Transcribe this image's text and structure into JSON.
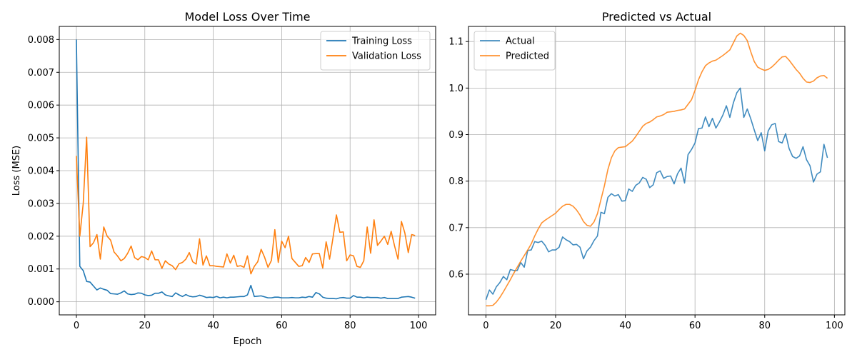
{
  "chart_data": [
    {
      "type": "line",
      "title": "Model Loss Over Time",
      "xlabel": "Epoch",
      "ylabel": "Loss (MSE)",
      "xlim": [
        -5,
        105
      ],
      "ylim": [
        -0.0004,
        0.0084
      ],
      "xticks": [
        0,
        20,
        40,
        60,
        80,
        100
      ],
      "yticks": [
        "0.000",
        "0.001",
        "0.002",
        "0.003",
        "0.004",
        "0.005",
        "0.006",
        "0.007",
        "0.008"
      ],
      "yticks_values": [
        0,
        0.001,
        0.002,
        0.003,
        0.004,
        0.005,
        0.006,
        0.007,
        0.008
      ],
      "grid": true,
      "legend": "top-right",
      "x": [
        0,
        1,
        2,
        3,
        4,
        5,
        6,
        7,
        8,
        9,
        10,
        11,
        12,
        13,
        14,
        15,
        16,
        17,
        18,
        19,
        20,
        21,
        22,
        23,
        24,
        25,
        26,
        27,
        28,
        29,
        30,
        31,
        32,
        33,
        34,
        35,
        36,
        37,
        38,
        39,
        40,
        41,
        42,
        43,
        44,
        45,
        46,
        47,
        48,
        49,
        50,
        51,
        52,
        53,
        54,
        55,
        56,
        57,
        58,
        59,
        60,
        61,
        62,
        63,
        64,
        65,
        66,
        67,
        68,
        69,
        70,
        71,
        72,
        73,
        74,
        75,
        76,
        77,
        78,
        79,
        80,
        81,
        82,
        83,
        84,
        85,
        86,
        87,
        88,
        89,
        90,
        91,
        92,
        93,
        94,
        95,
        96,
        97,
        98,
        99
      ],
      "series": [
        {
          "name": "Training Loss",
          "color": "#1f77b4",
          "values": [
            0.008,
            0.00108,
            0.00095,
            0.00062,
            0.0006,
            0.00048,
            0.00036,
            0.00042,
            0.00038,
            0.00035,
            0.00025,
            0.00024,
            0.00023,
            0.00027,
            0.00033,
            0.00024,
            0.00022,
            0.00023,
            0.00027,
            0.00026,
            0.00021,
            0.00019,
            0.0002,
            0.00026,
            0.00026,
            0.0003,
            0.00021,
            0.00018,
            0.00016,
            0.00027,
            0.00021,
            0.00016,
            0.00022,
            0.00017,
            0.00015,
            0.00016,
            0.0002,
            0.00017,
            0.00013,
            0.00014,
            0.00013,
            0.00016,
            0.00012,
            0.00014,
            0.00012,
            0.00014,
            0.00014,
            0.00015,
            0.00016,
            0.00016,
            0.00021,
            0.0005,
            0.00016,
            0.00017,
            0.00018,
            0.00015,
            0.00012,
            0.00012,
            0.00014,
            0.00014,
            0.00012,
            0.00012,
            0.00012,
            0.00013,
            0.00012,
            0.00012,
            0.00014,
            0.00013,
            0.00016,
            0.00014,
            0.00028,
            0.00024,
            0.00014,
            0.00011,
            0.0001,
            0.0001,
            9e-05,
            0.00012,
            0.00013,
            0.00011,
            0.00011,
            0.00019,
            0.00014,
            0.00014,
            0.00012,
            0.00014,
            0.00013,
            0.00013,
            0.00013,
            0.00011,
            0.00013,
            0.0001,
            0.0001,
            0.0001,
            0.0001,
            0.00014,
            0.00015,
            0.00016,
            0.00014,
            0.00011
          ]
        },
        {
          "name": "Validation Loss",
          "color": "#ff7f0e",
          "values": [
            0.00445,
            0.002,
            0.003,
            0.00502,
            0.00168,
            0.0018,
            0.00205,
            0.0013,
            0.00228,
            0.002,
            0.00188,
            0.00152,
            0.0014,
            0.00125,
            0.00132,
            0.00148,
            0.0017,
            0.00135,
            0.00128,
            0.00138,
            0.00135,
            0.00128,
            0.00155,
            0.00128,
            0.00128,
            0.00102,
            0.00125,
            0.00115,
            0.0011,
            0.00098,
            0.00116,
            0.0012,
            0.0013,
            0.0015,
            0.00122,
            0.00115,
            0.00192,
            0.00112,
            0.0014,
            0.0011,
            0.0011,
            0.00108,
            0.00107,
            0.00106,
            0.00146,
            0.00118,
            0.00142,
            0.00108,
            0.0011,
            0.00105,
            0.0014,
            0.00085,
            0.00108,
            0.00122,
            0.0016,
            0.00136,
            0.00105,
            0.00126,
            0.0022,
            0.0012,
            0.00185,
            0.00165,
            0.002,
            0.00132,
            0.0012,
            0.00108,
            0.0011,
            0.00135,
            0.0012,
            0.00146,
            0.00147,
            0.00147,
            0.00103,
            0.00183,
            0.0013,
            0.00195,
            0.00265,
            0.00212,
            0.00213,
            0.00125,
            0.00143,
            0.0014,
            0.00108,
            0.00105,
            0.00125,
            0.00228,
            0.00148,
            0.0025,
            0.00172,
            0.00185,
            0.002,
            0.00175,
            0.00215,
            0.0017,
            0.0013,
            0.00245,
            0.0021,
            0.0015,
            0.00205,
            0.00202
          ]
        }
      ]
    },
    {
      "type": "line",
      "title": "Predicted vs Actual",
      "xlabel": "",
      "ylabel": "",
      "xlim": [
        -5,
        103
      ],
      "ylim": [
        0.5125,
        1.1325
      ],
      "xticks": [
        0,
        20,
        40,
        60,
        80,
        100
      ],
      "yticks": [
        "0.6",
        "0.7",
        "0.8",
        "0.9",
        "1.0",
        "1.1"
      ],
      "yticks_values": [
        0.6,
        0.7,
        0.8,
        0.9,
        1.0,
        1.1
      ],
      "grid": true,
      "legend": "top-left",
      "x": [
        0,
        1,
        2,
        3,
        4,
        5,
        6,
        7,
        8,
        9,
        10,
        11,
        12,
        13,
        14,
        15,
        16,
        17,
        18,
        19,
        20,
        21,
        22,
        23,
        24,
        25,
        26,
        27,
        28,
        29,
        30,
        31,
        32,
        33,
        34,
        35,
        36,
        37,
        38,
        39,
        40,
        41,
        42,
        43,
        44,
        45,
        46,
        47,
        48,
        49,
        50,
        51,
        52,
        53,
        54,
        55,
        56,
        57,
        58,
        59,
        60,
        61,
        62,
        63,
        64,
        65,
        66,
        67,
        68,
        69,
        70,
        71,
        72,
        73,
        74,
        75,
        76,
        77,
        78,
        79,
        80,
        81,
        82,
        83,
        84,
        85,
        86,
        87,
        88,
        89,
        90,
        91,
        92,
        93,
        94,
        95,
        96,
        97,
        98
      ],
      "series": [
        {
          "name": "Actual",
          "color": "#1f77b4",
          "values": [
            0.545,
            0.566,
            0.557,
            0.573,
            0.582,
            0.595,
            0.588,
            0.61,
            0.608,
            0.608,
            0.625,
            0.615,
            0.651,
            0.652,
            0.67,
            0.668,
            0.671,
            0.662,
            0.648,
            0.652,
            0.652,
            0.658,
            0.68,
            0.674,
            0.67,
            0.663,
            0.664,
            0.658,
            0.633,
            0.65,
            0.658,
            0.672,
            0.682,
            0.733,
            0.73,
            0.765,
            0.773,
            0.768,
            0.771,
            0.757,
            0.758,
            0.783,
            0.778,
            0.791,
            0.796,
            0.808,
            0.804,
            0.786,
            0.792,
            0.818,
            0.822,
            0.806,
            0.81,
            0.811,
            0.794,
            0.816,
            0.828,
            0.796,
            0.857,
            0.868,
            0.882,
            0.913,
            0.914,
            0.938,
            0.917,
            0.935,
            0.914,
            0.927,
            0.942,
            0.962,
            0.937,
            0.968,
            0.99,
            1.0,
            0.937,
            0.955,
            0.934,
            0.91,
            0.887,
            0.904,
            0.865,
            0.908,
            0.921,
            0.924,
            0.885,
            0.882,
            0.902,
            0.87,
            0.853,
            0.849,
            0.854,
            0.874,
            0.846,
            0.833,
            0.798,
            0.815,
            0.82,
            0.879,
            0.85
          ]
        },
        {
          "name": "Predicted",
          "color": "#ff7f0e",
          "values": [
            0.532,
            0.532,
            0.533,
            0.54,
            0.55,
            0.562,
            0.575,
            0.588,
            0.602,
            0.615,
            0.628,
            0.64,
            0.652,
            0.665,
            0.682,
            0.697,
            0.71,
            0.716,
            0.721,
            0.726,
            0.731,
            0.739,
            0.746,
            0.75,
            0.75,
            0.746,
            0.738,
            0.727,
            0.713,
            0.705,
            0.703,
            0.712,
            0.73,
            0.76,
            0.79,
            0.825,
            0.85,
            0.865,
            0.872,
            0.873,
            0.874,
            0.88,
            0.886,
            0.896,
            0.907,
            0.918,
            0.924,
            0.927,
            0.932,
            0.938,
            0.94,
            0.943,
            0.948,
            0.949,
            0.95,
            0.952,
            0.953,
            0.955,
            0.965,
            0.975,
            0.995,
            1.018,
            1.035,
            1.048,
            1.054,
            1.058,
            1.06,
            1.065,
            1.07,
            1.076,
            1.082,
            1.097,
            1.112,
            1.118,
            1.113,
            1.102,
            1.078,
            1.057,
            1.045,
            1.041,
            1.038,
            1.04,
            1.045,
            1.052,
            1.06,
            1.067,
            1.068,
            1.06,
            1.05,
            1.04,
            1.032,
            1.021,
            1.013,
            1.012,
            1.015,
            1.022,
            1.026,
            1.027,
            1.021
          ]
        }
      ]
    }
  ]
}
